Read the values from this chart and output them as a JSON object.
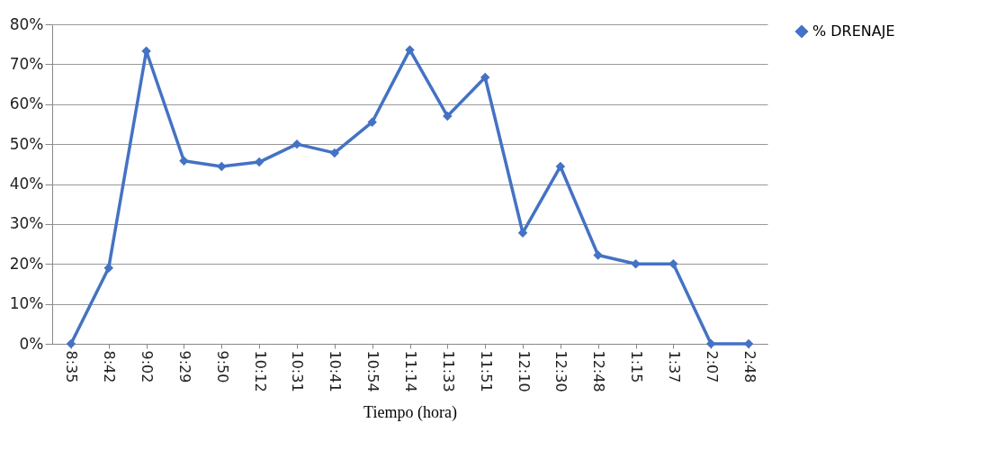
{
  "chart_data": {
    "type": "line",
    "xlabel": "Tiempo (hora)",
    "categories": [
      "8:35",
      "8:42",
      "9:02",
      "9:29",
      "9:50",
      "10:12",
      "10:31",
      "10:41",
      "10:54",
      "11:14",
      "11:33",
      "11:51",
      "12:10",
      "12:30",
      "12:48",
      "1:15",
      "1:37",
      "2:07",
      "2:48"
    ],
    "series": [
      {
        "name": "% DRENAJE",
        "color": "#4472c4",
        "values": [
          0,
          19,
          73.3,
          45.8,
          44.4,
          45.5,
          50,
          47.8,
          55.5,
          73.6,
          57,
          66.7,
          27.8,
          44.4,
          22.2,
          20,
          20,
          0,
          0
        ]
      }
    ],
    "ylim": [
      0,
      80
    ],
    "yticks": [
      {
        "value": 0,
        "label": "0%"
      },
      {
        "value": 10,
        "label": "10%"
      },
      {
        "value": 20,
        "label": "20%"
      },
      {
        "value": 30,
        "label": "30%"
      },
      {
        "value": 40,
        "label": "40%"
      },
      {
        "value": 50,
        "label": "50%"
      },
      {
        "value": 60,
        "label": "60%"
      },
      {
        "value": 70,
        "label": "70%"
      },
      {
        "value": 80,
        "label": "80%"
      }
    ],
    "grid": "y",
    "legend": "right",
    "marker": "diamond",
    "line_style": "solid"
  }
}
